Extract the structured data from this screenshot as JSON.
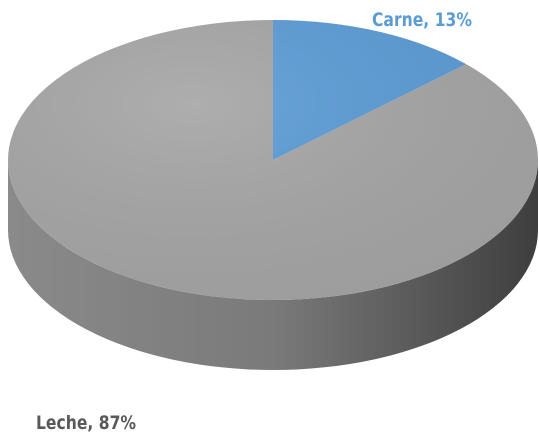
{
  "chart_data": {
    "type": "pie",
    "style": "3d",
    "categories": [
      "Carne",
      "Leche"
    ],
    "values": [
      13,
      87
    ],
    "colors": [
      "#5b9bd5",
      "#a5a5a5"
    ],
    "data_labels": [
      {
        "category": "Carne",
        "text": "Carne, 13%",
        "color": "#5b9bd5"
      },
      {
        "category": "Leche",
        "text": "Leche, 87%",
        "color": "#595959"
      }
    ],
    "title": "",
    "legend": "none"
  }
}
